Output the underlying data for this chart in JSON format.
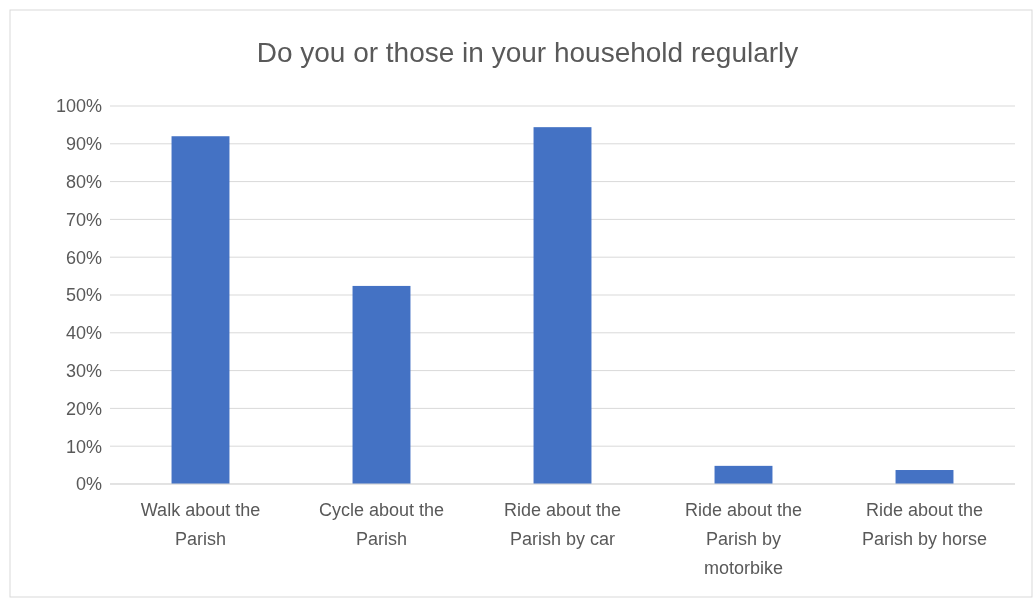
{
  "chart_data": {
    "type": "bar",
    "title": "Do you or those in your household regularly",
    "categories": [
      "Walk about the Parish",
      "Cycle about the Parish",
      "Ride about the Parish by car",
      "Ride about the Parish by motorbike",
      "Ride about the Parish by horse"
    ],
    "values": [
      92,
      52.4,
      94.4,
      4.8,
      3.7
    ],
    "color": "#4472c4",
    "ylim": [
      0,
      100
    ],
    "yticks": [
      {
        "value": 0,
        "label": "0%"
      },
      {
        "value": 10,
        "label": "10%"
      },
      {
        "value": 20,
        "label": "20%"
      },
      {
        "value": 30,
        "label": "30%"
      },
      {
        "value": 40,
        "label": "40%"
      },
      {
        "value": 50,
        "label": "50%"
      },
      {
        "value": 60,
        "label": "60%"
      },
      {
        "value": 70,
        "label": "70%"
      },
      {
        "value": 80,
        "label": "80%"
      },
      {
        "value": 90,
        "label": "90%"
      },
      {
        "value": 100,
        "label": "100%"
      }
    ],
    "grid": "y"
  }
}
